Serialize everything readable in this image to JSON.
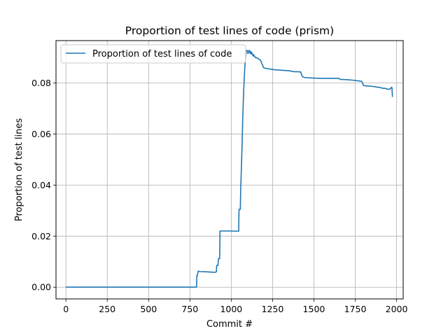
{
  "chart_data": {
    "type": "line",
    "title": "Proportion of test lines of code (prism)",
    "xlabel": "Commit #",
    "ylabel": "Proportion of test lines",
    "xlim": [
      -60,
      2040
    ],
    "ylim": [
      -0.0046,
      0.0966
    ],
    "xticks": [
      0,
      250,
      500,
      750,
      1000,
      1250,
      1500,
      1750,
      2000
    ],
    "xtick_labels": [
      "0",
      "250",
      "500",
      "750",
      "1000",
      "1250",
      "1500",
      "1750",
      "2000"
    ],
    "yticks": [
      0.0,
      0.02,
      0.04,
      0.06,
      0.08
    ],
    "ytick_labels": [
      "0.00",
      "0.02",
      "0.04",
      "0.06",
      "0.08"
    ],
    "grid": true,
    "legend_position": "top-left",
    "color": "#1f77b4",
    "series": [
      {
        "name": "Proportion of test lines of code",
        "x": [
          0,
          790,
          792,
          795,
          800,
          805,
          810,
          850,
          880,
          900,
          910,
          912,
          920,
          922,
          930,
          932,
          935,
          1000,
          1045,
          1047,
          1055,
          1057,
          1062,
          1066,
          1070,
          1074,
          1078,
          1082,
          1086,
          1090,
          1094,
          1098,
          1101,
          1104,
          1108,
          1112,
          1114,
          1117,
          1120,
          1124,
          1128,
          1132,
          1134,
          1136,
          1140,
          1145,
          1150,
          1155,
          1160,
          1165,
          1170,
          1175,
          1180,
          1185,
          1190,
          1195,
          1200,
          1205,
          1210,
          1220,
          1230,
          1240,
          1260,
          1300,
          1350,
          1380,
          1400,
          1420,
          1430,
          1440,
          1450,
          1500,
          1550,
          1600,
          1650,
          1660,
          1700,
          1750,
          1790,
          1800,
          1810,
          1850,
          1900,
          1920,
          1930,
          1950,
          1960,
          1965,
          1968,
          1970,
          1972,
          1975
        ],
        "y": [
          0.0,
          0.0,
          0.0045,
          0.0045,
          0.0063,
          0.0062,
          0.0061,
          0.006,
          0.0059,
          0.0058,
          0.006,
          0.0085,
          0.0085,
          0.0112,
          0.0112,
          0.022,
          0.022,
          0.022,
          0.0219,
          0.0305,
          0.0305,
          0.038,
          0.048,
          0.057,
          0.067,
          0.075,
          0.081,
          0.086,
          0.0895,
          0.0925,
          0.0928,
          0.0925,
          0.0915,
          0.092,
          0.0928,
          0.0922,
          0.0916,
          0.0924,
          0.0914,
          0.092,
          0.091,
          0.0912,
          0.0905,
          0.091,
          0.0906,
          0.09,
          0.09,
          0.0898,
          0.0897,
          0.0894,
          0.0893,
          0.089,
          0.0885,
          0.0875,
          0.087,
          0.086,
          0.0859,
          0.0858,
          0.0857,
          0.0856,
          0.0855,
          0.0854,
          0.0852,
          0.085,
          0.0848,
          0.0844,
          0.0844,
          0.0843,
          0.0825,
          0.0822,
          0.0821,
          0.0819,
          0.0818,
          0.0818,
          0.0818,
          0.0814,
          0.0813,
          0.081,
          0.0806,
          0.079,
          0.0789,
          0.0787,
          0.0782,
          0.0779,
          0.0779,
          0.0775,
          0.0776,
          0.078,
          0.0782,
          0.0783,
          0.0782,
          0.0745
        ]
      }
    ]
  }
}
